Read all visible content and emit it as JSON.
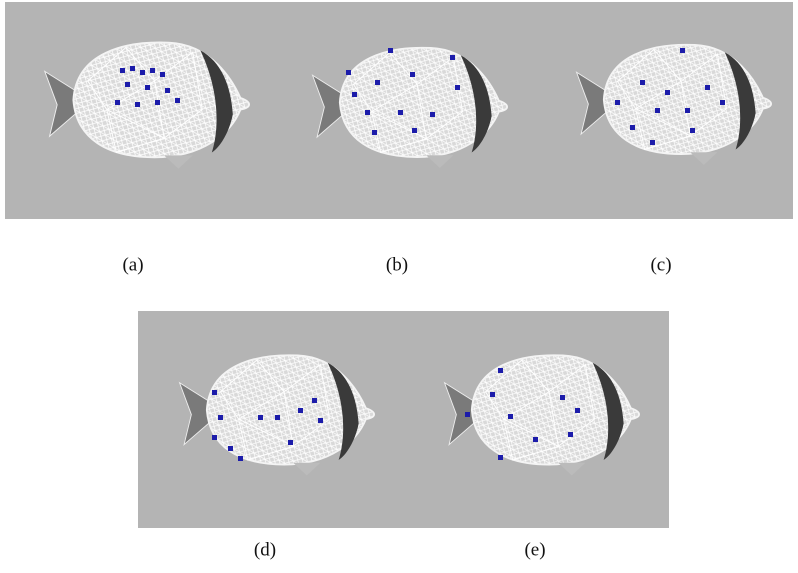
{
  "figure": {
    "subfigure_labels": [
      "(a)",
      "(b)",
      "(c)",
      "(d)",
      "(e)"
    ]
  }
}
